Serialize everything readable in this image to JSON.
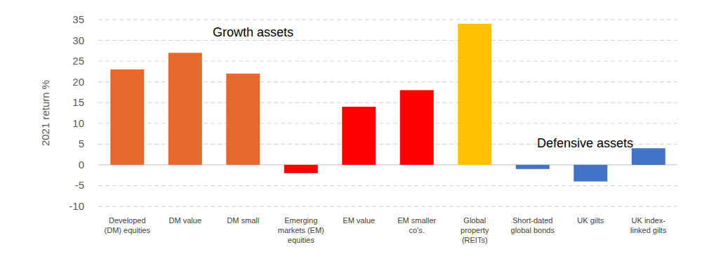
{
  "chart_data": {
    "type": "bar",
    "y_label": "2021 return %",
    "annotations": [
      "Growth assets",
      "Defensive assets"
    ],
    "categories": [
      "Developed\n(DM) equities",
      "DM value",
      "DM small",
      "Emerging\nmarkets (EM)\nequities",
      "EM value",
      "EM smaller\nco's.",
      "Global\nproperty\n(REITs)",
      "Short-dated\nglobal bonds",
      "UK gilts",
      "UK index-\nlinked gilts"
    ],
    "values": [
      23,
      27,
      22,
      -2,
      14,
      18,
      34,
      -1,
      -4,
      4
    ],
    "colors": [
      "#e46a2c",
      "#e46a2c",
      "#e46a2c",
      "#ff0000",
      "#ff0000",
      "#ff0000",
      "#ffc000",
      "#4472c4",
      "#4472c4",
      "#4472c4"
    ],
    "ylim": [
      -10,
      35
    ],
    "yticks": [
      -10,
      -5,
      0,
      5,
      10,
      15,
      20,
      25,
      30,
      35
    ],
    "grid": true
  }
}
